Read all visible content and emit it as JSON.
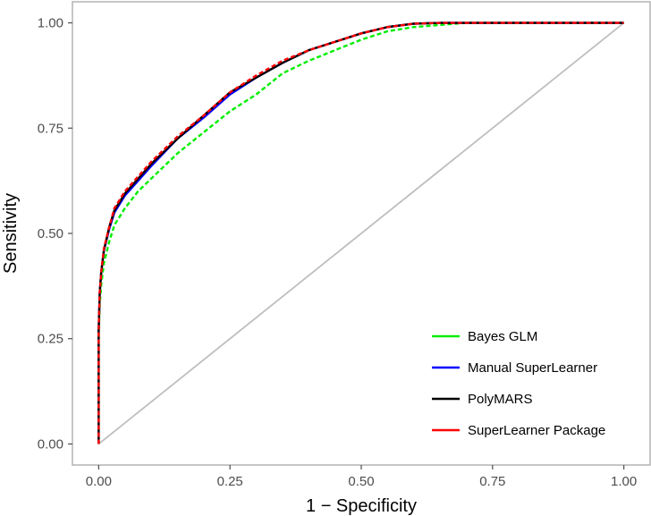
{
  "chart_data": {
    "type": "line",
    "title": "",
    "xlabel": "1 − Specificity",
    "ylabel": "Sensitivity",
    "xlim": [
      -0.05,
      1.05
    ],
    "ylim": [
      -0.05,
      1.05
    ],
    "xticks": [
      0,
      0.25,
      0.5,
      0.75,
      1
    ],
    "yticks": [
      0,
      0.25,
      0.5,
      0.75,
      1
    ],
    "xtick_labels": [
      "0.00",
      "0.25",
      "0.50",
      "0.75",
      "1.00"
    ],
    "ytick_labels": [
      "0.00",
      "0.25",
      "0.50",
      "0.75",
      "1.00"
    ],
    "grid": false,
    "legend_position": "bottom-right",
    "reference_line": {
      "x": [
        0,
        1
      ],
      "y": [
        0,
        1
      ],
      "color": "#bebebe"
    },
    "series": [
      {
        "name": "Bayes GLM",
        "color": "#00ee00",
        "dash": "dashed",
        "x": [
          0,
          0,
          0.002,
          0.005,
          0.01,
          0.02,
          0.03,
          0.05,
          0.075,
          0.1,
          0.15,
          0.2,
          0.25,
          0.3,
          0.35,
          0.4,
          0.45,
          0.5,
          0.55,
          0.6,
          0.65,
          0.7,
          0.8,
          1
        ],
        "y": [
          0,
          0.25,
          0.33,
          0.38,
          0.43,
          0.48,
          0.52,
          0.56,
          0.6,
          0.63,
          0.69,
          0.74,
          0.79,
          0.83,
          0.88,
          0.91,
          0.935,
          0.96,
          0.98,
          0.99,
          0.995,
          1,
          1,
          1
        ]
      },
      {
        "name": "Manual SuperLearner",
        "color": "#0000ff",
        "dash": "solid",
        "x": [
          0,
          0,
          0.002,
          0.005,
          0.01,
          0.02,
          0.03,
          0.05,
          0.075,
          0.1,
          0.15,
          0.2,
          0.25,
          0.3,
          0.35,
          0.4,
          0.45,
          0.5,
          0.55,
          0.6,
          0.65,
          0.7,
          0.8,
          1
        ],
        "y": [
          0,
          0.27,
          0.36,
          0.41,
          0.46,
          0.51,
          0.55,
          0.59,
          0.625,
          0.66,
          0.725,
          0.775,
          0.83,
          0.87,
          0.905,
          0.935,
          0.955,
          0.975,
          0.99,
          0.998,
          1,
          1,
          1,
          1
        ]
      },
      {
        "name": "PolyMARS",
        "color": "#000000",
        "dash": "solid",
        "x": [
          0,
          0,
          0.002,
          0.005,
          0.01,
          0.02,
          0.03,
          0.05,
          0.075,
          0.1,
          0.15,
          0.2,
          0.25,
          0.3,
          0.35,
          0.4,
          0.45,
          0.5,
          0.55,
          0.6,
          0.65,
          0.7,
          0.8,
          1
        ],
        "y": [
          0,
          0.27,
          0.36,
          0.41,
          0.46,
          0.515,
          0.555,
          0.595,
          0.63,
          0.665,
          0.725,
          0.78,
          0.835,
          0.87,
          0.905,
          0.935,
          0.955,
          0.975,
          0.99,
          0.998,
          1,
          1,
          1,
          1
        ]
      },
      {
        "name": "SuperLearner Package",
        "color": "#ff0000",
        "dash": "dashed",
        "x": [
          0,
          0,
          0.002,
          0.005,
          0.01,
          0.02,
          0.03,
          0.05,
          0.075,
          0.1,
          0.15,
          0.2,
          0.25,
          0.3,
          0.35,
          0.4,
          0.45,
          0.5,
          0.55,
          0.6,
          0.65,
          0.7,
          0.8,
          1
        ],
        "y": [
          0,
          0.27,
          0.36,
          0.41,
          0.465,
          0.515,
          0.56,
          0.6,
          0.635,
          0.67,
          0.73,
          0.78,
          0.835,
          0.875,
          0.91,
          0.935,
          0.955,
          0.975,
          0.99,
          0.998,
          1,
          1,
          1,
          1
        ]
      }
    ]
  }
}
